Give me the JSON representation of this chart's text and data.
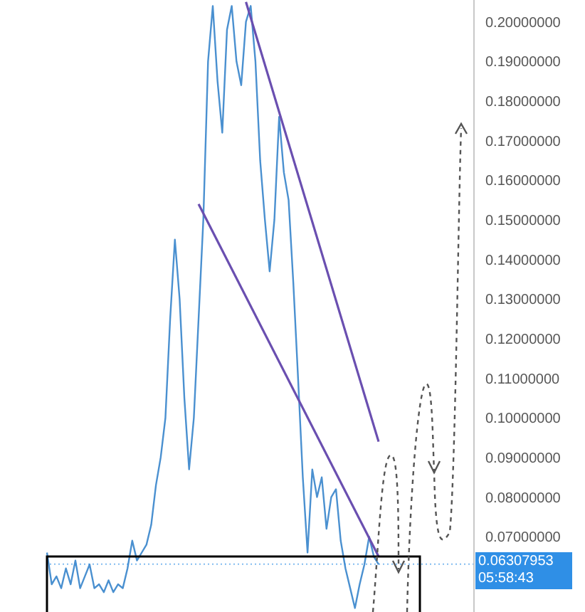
{
  "chart_data": {
    "type": "line",
    "categories": [
      null,
      null,
      null,
      null,
      null,
      null,
      null,
      null,
      null,
      null,
      null,
      null,
      null,
      null,
      null,
      null,
      null,
      null,
      null,
      null,
      null,
      null,
      null,
      null,
      null,
      null,
      null,
      null,
      null,
      null,
      null,
      null,
      null,
      null,
      null,
      null,
      null,
      null,
      null,
      null,
      null,
      null,
      null,
      null,
      null,
      null,
      null,
      null,
      null,
      null,
      null,
      null,
      null,
      null,
      null,
      null,
      null,
      null,
      null,
      null,
      null,
      null,
      null,
      null,
      null,
      null,
      null,
      null,
      null,
      null,
      null
    ],
    "series": [
      {
        "color": "#4a90d0",
        "values": [
          0.066,
          0.058,
          0.06,
          0.057,
          0.062,
          0.058,
          0.064,
          0.057,
          0.06,
          0.063,
          0.057,
          0.058,
          0.056,
          0.059,
          0.056,
          0.058,
          0.057,
          0.062,
          0.069,
          0.064,
          0.066,
          0.068,
          0.073,
          0.083,
          0.09,
          0.1,
          0.125,
          0.145,
          0.13,
          0.105,
          0.087,
          0.1,
          0.125,
          0.15,
          0.19,
          0.204,
          0.185,
          0.172,
          0.198,
          0.204,
          0.19,
          0.184,
          0.2,
          0.204,
          0.19,
          0.165,
          0.15,
          0.137,
          0.15,
          0.176,
          0.162,
          0.155,
          0.134,
          0.11,
          0.085,
          0.066,
          0.087,
          0.08,
          0.085,
          0.072,
          0.08,
          0.082,
          0.069,
          0.062,
          0.057,
          0.052,
          0.058,
          0.063,
          0.07,
          0.065,
          0.063
        ]
      },
      {
        "type": "line",
        "color": "#6a4fb0",
        "values": [
          null,
          null,
          null,
          null,
          null,
          null,
          null,
          null,
          null,
          null,
          null,
          null,
          null,
          null,
          null,
          null,
          null,
          null,
          null,
          null,
          null,
          null,
          null,
          null,
          null,
          null,
          null,
          null,
          null,
          null,
          null,
          null,
          null,
          null,
          null,
          null,
          null,
          null,
          null,
          null,
          null,
          null,
          0.205,
          null,
          null,
          null,
          null,
          null,
          null,
          null,
          null,
          null,
          null,
          null,
          null,
          null,
          null,
          null,
          null,
          null,
          null,
          null,
          null,
          null,
          null,
          null,
          null,
          null,
          null,
          null,
          0.094
        ]
      },
      {
        "type": "line",
        "color": "#6a4fb0",
        "values": [
          null,
          null,
          null,
          null,
          null,
          null,
          null,
          null,
          null,
          null,
          null,
          null,
          null,
          null,
          null,
          null,
          null,
          null,
          null,
          null,
          null,
          null,
          null,
          null,
          null,
          null,
          null,
          null,
          null,
          null,
          null,
          null,
          0.154,
          null,
          null,
          null,
          null,
          null,
          null,
          null,
          null,
          null,
          null,
          null,
          null,
          null,
          null,
          null,
          null,
          null,
          null,
          null,
          null,
          null,
          null,
          null,
          null,
          null,
          null,
          null,
          null,
          null,
          null,
          null,
          null,
          null,
          null,
          null,
          null,
          null,
          0.065
        ]
      }
    ],
    "ylim": [
      0.051,
      0.2055
    ],
    "yticks": [
      {
        "value": 0.07,
        "label": "0.07000000"
      },
      {
        "value": 0.08,
        "label": "0.08000000"
      },
      {
        "value": 0.09,
        "label": "0.09000000"
      },
      {
        "value": 0.1,
        "label": "0.10000000"
      },
      {
        "value": 0.11,
        "label": "0.11000000"
      },
      {
        "value": 0.12,
        "label": "0.12000000"
      },
      {
        "value": 0.13,
        "label": "0.13000000"
      },
      {
        "value": 0.14,
        "label": "0.14000000"
      },
      {
        "value": 0.15,
        "label": "0.15000000"
      },
      {
        "value": 0.16,
        "label": "0.16000000"
      },
      {
        "value": 0.17,
        "label": "0.17000000"
      },
      {
        "value": 0.18,
        "label": "0.18000000"
      },
      {
        "value": 0.19,
        "label": "0.19000000"
      },
      {
        "value": 0.2,
        "label": "0.20000000"
      }
    ],
    "tick_labels": "y",
    "grid": false,
    "legend": false,
    "marker": "none",
    "line_style": "solid",
    "ref_lines": [
      {
        "axis": "y",
        "value": 0.06307953,
        "label": "0.06307953",
        "color": "#2f8fe6"
      }
    ],
    "annotations": [
      "05:58:43"
    ]
  }
}
